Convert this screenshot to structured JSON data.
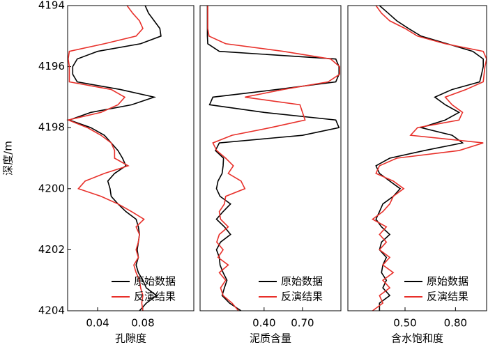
{
  "chart_data": [
    {
      "type": "line",
      "xlabel": "孔隙度",
      "ylabel": "深度/m",
      "inverted": true,
      "legend": "lower right",
      "xlim": [
        0.0135,
        0.125
      ],
      "xticks": [
        0.04,
        0.08
      ],
      "ylim": [
        4194,
        4204
      ],
      "yticks": [
        4194,
        4196,
        4198,
        4200,
        4202,
        4204
      ],
      "y": [
        4194,
        4194.25,
        4194.5,
        4194.75,
        4195,
        4195.25,
        4195.5,
        4195.75,
        4196,
        4196.25,
        4196.5,
        4196.75,
        4197,
        4197.25,
        4197.5,
        4197.75,
        4198,
        4198.25,
        4198.5,
        4198.75,
        4199,
        4199.25,
        4199.5,
        4199.75,
        4200,
        4200.25,
        4200.5,
        4200.75,
        4201,
        4201.25,
        4201.5,
        4201.75,
        4202,
        4202.25,
        4202.5,
        4202.75,
        4203,
        4203.25,
        4203.5,
        4203.75,
        4204
      ],
      "series": [
        {
          "name": "原始数据",
          "color": "#000000",
          "values": [
            0.082,
            0.085,
            0.09,
            0.095,
            0.096,
            0.078,
            0.04,
            0.022,
            0.018,
            0.018,
            0.022,
            0.06,
            0.09,
            0.07,
            0.034,
            0.015,
            0.034,
            0.046,
            0.052,
            0.058,
            0.062,
            0.065,
            0.055,
            0.049,
            0.051,
            0.052,
            0.058,
            0.065,
            0.074,
            0.076,
            0.077,
            0.076,
            0.075,
            0.076,
            0.074,
            0.076,
            0.08,
            0.083,
            0.092,
            0.083,
            0.077
          ]
        },
        {
          "name": "反演结果",
          "color": "#e8302a",
          "values": [
            0.066,
            0.071,
            0.077,
            0.08,
            0.074,
            0.046,
            0.015,
            0.014,
            0.015,
            0.015,
            0.015,
            0.052,
            0.064,
            0.058,
            0.043,
            0.014,
            0.031,
            0.043,
            0.052,
            0.055,
            0.055,
            0.067,
            0.046,
            0.029,
            0.023,
            0.043,
            0.058,
            0.07,
            0.081,
            0.074,
            0.077,
            0.076,
            0.074,
            0.076,
            0.072,
            0.074,
            0.077,
            0.078,
            0.08,
            0.079,
            0.08
          ]
        }
      ]
    },
    {
      "type": "line",
      "xlabel": "泥质含量",
      "inverted": true,
      "legend": "lower right",
      "xlim": [
        -0.1,
        1.0
      ],
      "xticks": [
        {
          "value": 0.4,
          "label": "0.40"
        },
        {
          "value": 0.7,
          "label": "0.70"
        }
      ],
      "ylim": [
        4194,
        4204
      ],
      "y": [
        4194,
        4194.25,
        4194.5,
        4194.75,
        4195,
        4195.25,
        4195.5,
        4195.75,
        4196,
        4196.25,
        4196.5,
        4196.75,
        4197,
        4197.25,
        4197.5,
        4197.75,
        4198,
        4198.25,
        4198.5,
        4198.75,
        4199,
        4199.25,
        4199.5,
        4199.75,
        4200,
        4200.25,
        4200.5,
        4200.75,
        4201,
        4201.25,
        4201.5,
        4201.75,
        4202,
        4202.25,
        4202.5,
        4202.75,
        4203,
        4203.25,
        4203.5,
        4203.75,
        4204
      ],
      "series": [
        {
          "name": "原始数据",
          "color": "#000000",
          "values": [
            -0.043,
            -0.043,
            -0.043,
            -0.043,
            -0.043,
            -0.04,
            0.05,
            0.96,
            0.985,
            0.985,
            0.96,
            0.5,
            0.0,
            -0.026,
            0.4,
            0.96,
            0.985,
            0.7,
            0.05,
            0.02,
            0.083,
            0.08,
            0.072,
            0.04,
            0.028,
            0.056,
            0.138,
            0.08,
            0.028,
            0.09,
            0.138,
            0.06,
            0.028,
            0.05,
            0.056,
            0.08,
            0.11,
            0.09,
            0.072,
            0.13,
            0.22
          ]
        },
        {
          "name": "反演结果",
          "color": "#e8302a",
          "values": [
            -0.04,
            -0.04,
            -0.04,
            -0.04,
            -0.03,
            0.1,
            0.55,
            0.92,
            0.99,
            0.99,
            0.9,
            0.55,
            0.25,
            0.68,
            0.7,
            0.72,
            0.45,
            0.15,
            0.0,
            0.03,
            0.1,
            0.16,
            0.12,
            0.22,
            0.25,
            0.1,
            0.09,
            0.05,
            0.06,
            0.12,
            0.05,
            0.03,
            0.08,
            0.04,
            0.12,
            0.05,
            0.1,
            0.06,
            0.08,
            0.15,
            0.2
          ]
        }
      ]
    },
    {
      "type": "line",
      "xlabel": "含水饱和度",
      "inverted": true,
      "legend": "lower right",
      "xlim": [
        0.16,
        0.985
      ],
      "xticks": [
        {
          "value": 0.5,
          "label": "0.50"
        },
        {
          "value": 0.8,
          "label": "0.80"
        }
      ],
      "ylim": [
        4194,
        4204
      ],
      "y": [
        4194,
        4194.25,
        4194.5,
        4194.75,
        4195,
        4195.25,
        4195.5,
        4195.75,
        4196,
        4196.25,
        4196.5,
        4196.75,
        4197,
        4197.25,
        4197.5,
        4197.75,
        4198,
        4198.25,
        4198.5,
        4198.75,
        4199,
        4199.25,
        4199.5,
        4199.75,
        4200,
        4200.25,
        4200.5,
        4200.75,
        4201,
        4201.25,
        4201.5,
        4201.75,
        4202,
        4202.25,
        4202.5,
        4202.75,
        4203,
        4203.25,
        4203.5,
        4203.75,
        4204
      ],
      "series": [
        {
          "name": "原始数据",
          "color": "#000000",
          "values": [
            0.348,
            0.4,
            0.451,
            0.52,
            0.595,
            0.75,
            0.903,
            0.965,
            0.965,
            0.955,
            0.944,
            0.78,
            0.677,
            0.739,
            0.821,
            0.739,
            0.595,
            0.78,
            0.842,
            0.615,
            0.409,
            0.327,
            0.348,
            0.409,
            0.471,
            0.43,
            0.368,
            0.348,
            0.327,
            0.36,
            0.409,
            0.36,
            0.348,
            0.389,
            0.368,
            0.36,
            0.389,
            0.368,
            0.409,
            0.348,
            0.348
          ]
        },
        {
          "name": "反演结果",
          "color": "#e8302a",
          "values": [
            0.327,
            0.36,
            0.409,
            0.5,
            0.574,
            0.739,
            0.965,
            0.985,
            0.975,
            0.97,
            0.965,
            0.862,
            0.739,
            0.78,
            0.842,
            0.821,
            0.574,
            0.533,
            0.965,
            0.821,
            0.451,
            0.348,
            0.327,
            0.43,
            0.492,
            0.43,
            0.409,
            0.368,
            0.307,
            0.389,
            0.348,
            0.389,
            0.348,
            0.409,
            0.368,
            0.43,
            0.368,
            0.409,
            0.348,
            0.368,
            0.307
          ]
        }
      ]
    }
  ]
}
